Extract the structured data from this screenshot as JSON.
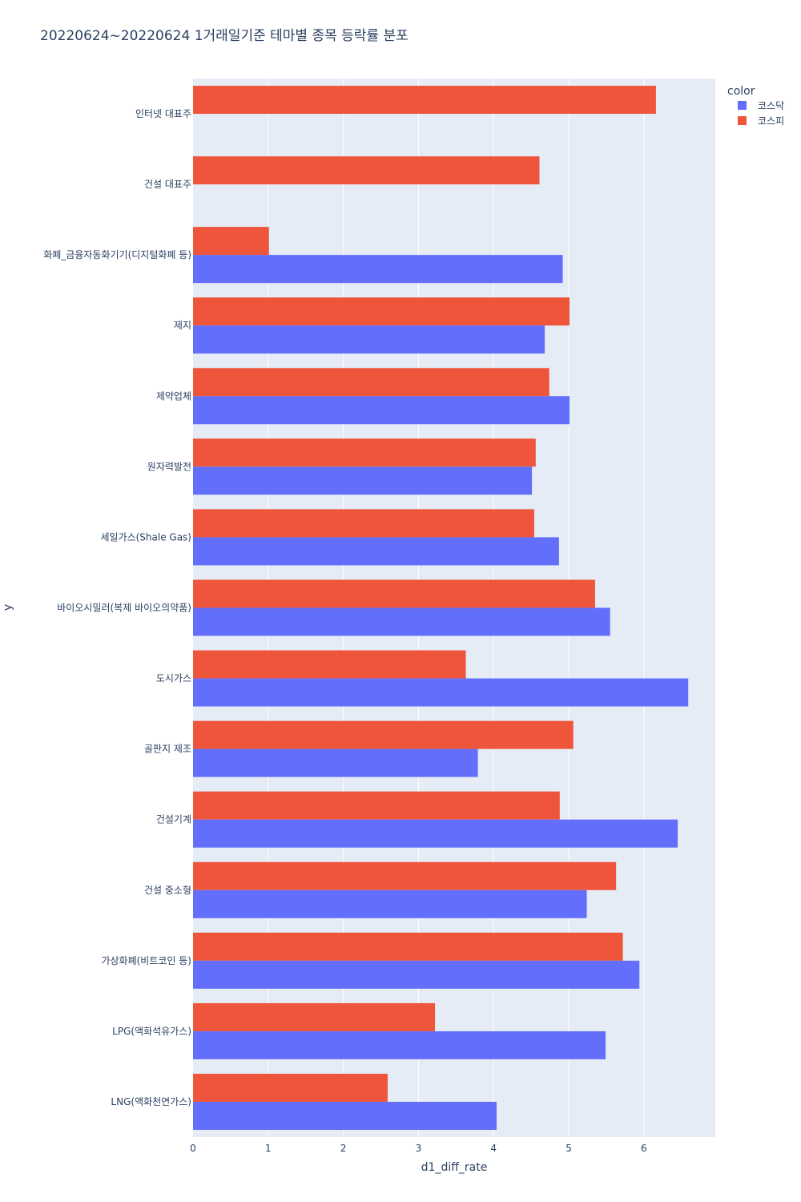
{
  "chart_data": {
    "type": "bar",
    "orientation": "horizontal",
    "title": "20220624~20220624 1거래일기준 테마별 종목 등락률 분포",
    "xlabel": "d1_diff_rate",
    "ylabel": "y",
    "xlim": [
      0,
      6.95
    ],
    "xticks": [
      0,
      1,
      2,
      3,
      4,
      5,
      6
    ],
    "grid": true,
    "legend": {
      "title": "color",
      "placement": "top-right"
    },
    "categories": [
      "인터넷 대표주",
      "건설 대표주",
      "화폐_금융자동화기기(디지털화폐 등)",
      "제지",
      "제약업체",
      "원자력발전",
      "세일가스(Shale Gas)",
      "바이오시밀러(복제 바이오의약품)",
      "도시가스",
      "골판지 제조",
      "건설기계",
      "건설 중소형",
      "가상화폐(비트코인 등)",
      "LPG(액화석유가스)",
      "LNG(액화천연가스)"
    ],
    "series": [
      {
        "name": "코스닥",
        "color": "#636efa",
        "values": [
          null,
          null,
          4.92,
          4.68,
          5.01,
          4.51,
          4.87,
          5.55,
          6.59,
          3.79,
          6.45,
          5.24,
          5.94,
          5.49,
          4.04
        ]
      },
      {
        "name": "코스피",
        "color": "#ef553b",
        "values": [
          6.16,
          4.61,
          1.01,
          5.01,
          4.74,
          4.56,
          4.54,
          5.35,
          3.63,
          5.06,
          4.88,
          5.63,
          5.72,
          3.22,
          2.59
        ]
      }
    ]
  }
}
